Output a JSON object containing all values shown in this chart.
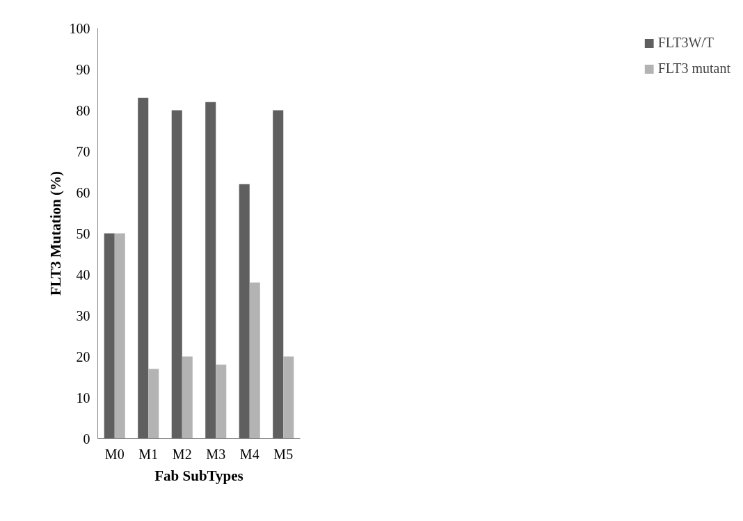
{
  "chart_data": {
    "type": "bar",
    "xlabel": "Fab SubTypes",
    "ylabel": "FLT3 Mutation (%)",
    "categories": [
      "M0",
      "M1",
      "M2",
      "M3",
      "M4",
      "M5"
    ],
    "series": [
      {
        "name": "FLT3W/T",
        "color": "#5f5f5f",
        "values": [
          50,
          83,
          80,
          82,
          62,
          80
        ]
      },
      {
        "name": "FLT3 mutant",
        "color": "#b3b3b3",
        "values": [
          50,
          17,
          20,
          18,
          38,
          20
        ]
      }
    ],
    "ylim": [
      0,
      100
    ],
    "yticks": [
      0,
      10,
      20,
      30,
      40,
      50,
      60,
      70,
      80,
      90,
      100
    ],
    "grid": false,
    "legend": "right"
  }
}
